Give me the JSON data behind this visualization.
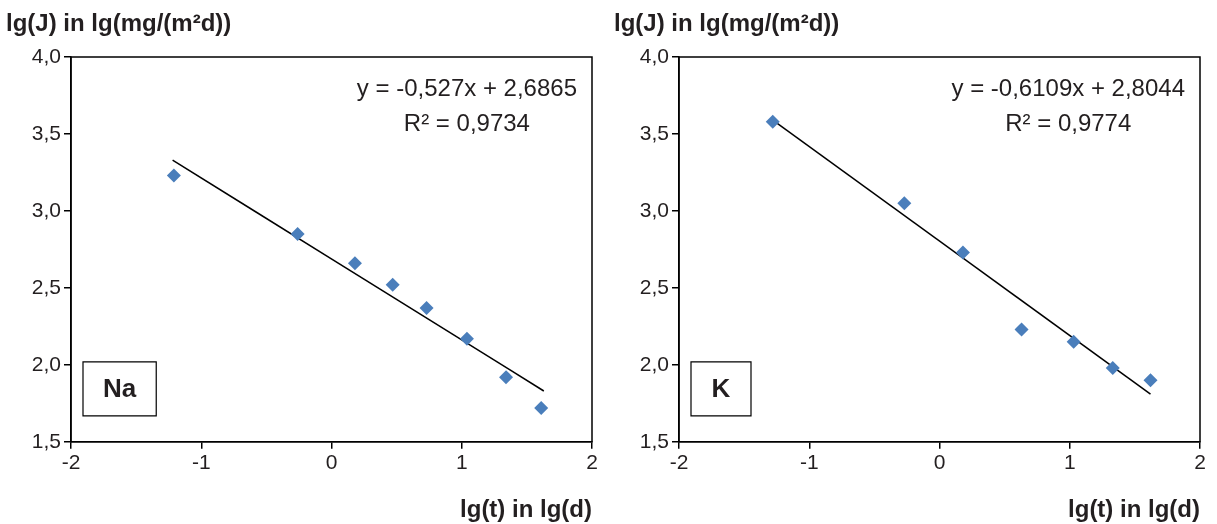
{
  "chart_data": [
    {
      "type": "scatter",
      "ylabel": "lg(J) in lg(mg/(m²d))",
      "xlabel": "lg(t) in lg(d)",
      "annotations": [
        "y = -0,527x + 2,6865",
        "R² = 0,9734",
        "Na"
      ],
      "xlim": [
        -2,
        2
      ],
      "xticks": [
        -2,
        -1,
        0,
        1,
        2
      ],
      "ylim": [
        1.5,
        4.0
      ],
      "yticks": [
        {
          "value": 1.5,
          "label": "1,5"
        },
        {
          "value": 2.0,
          "label": "2,0"
        },
        {
          "value": 2.5,
          "label": "2,5"
        },
        {
          "value": 3.0,
          "label": "3,0"
        },
        {
          "value": 3.5,
          "label": "3,5"
        },
        {
          "value": 4.0,
          "label": "4,0"
        }
      ],
      "grid": false,
      "legend": false,
      "marker": "diamond",
      "series": [
        {
          "color": "#4a7ebb",
          "x": [
            -1.21,
            -0.26,
            0.18,
            0.47,
            0.73,
            1.04,
            1.34,
            1.61
          ],
          "values": [
            3.23,
            2.85,
            2.66,
            2.52,
            2.37,
            2.17,
            1.92,
            1.72
          ]
        },
        {
          "type": "line",
          "marker": "none",
          "color": "#000000",
          "x": [
            -1.22,
            1.63
          ],
          "values": [
            3.33,
            1.83
          ]
        }
      ]
    },
    {
      "type": "scatter",
      "ylabel": "lg(J) in lg(mg/(m²d))",
      "xlabel": "lg(t) in lg(d)",
      "annotations": [
        "y = -0,6109x + 2,8044",
        "R² = 0,9774",
        "K"
      ],
      "xlim": [
        -2,
        2
      ],
      "xticks": [
        -2,
        -1,
        0,
        1,
        2
      ],
      "ylim": [
        1.5,
        4.0
      ],
      "yticks": [
        {
          "value": 1.5,
          "label": "1,5"
        },
        {
          "value": 2.0,
          "label": "2,0"
        },
        {
          "value": 2.5,
          "label": "2,5"
        },
        {
          "value": 3.0,
          "label": "3,0"
        },
        {
          "value": 3.5,
          "label": "3,5"
        },
        {
          "value": 4.0,
          "label": "4,0"
        }
      ],
      "grid": false,
      "legend": false,
      "marker": "diamond",
      "series": [
        {
          "color": "#4a7ebb",
          "x": [
            -1.28,
            -0.27,
            0.18,
            0.63,
            1.03,
            1.33,
            1.62
          ],
          "values": [
            3.58,
            3.05,
            2.73,
            2.23,
            2.15,
            1.98,
            1.9
          ]
        },
        {
          "type": "line",
          "marker": "none",
          "color": "#000000",
          "x": [
            -1.28,
            1.62
          ],
          "values": [
            3.59,
            1.81
          ]
        }
      ]
    }
  ]
}
